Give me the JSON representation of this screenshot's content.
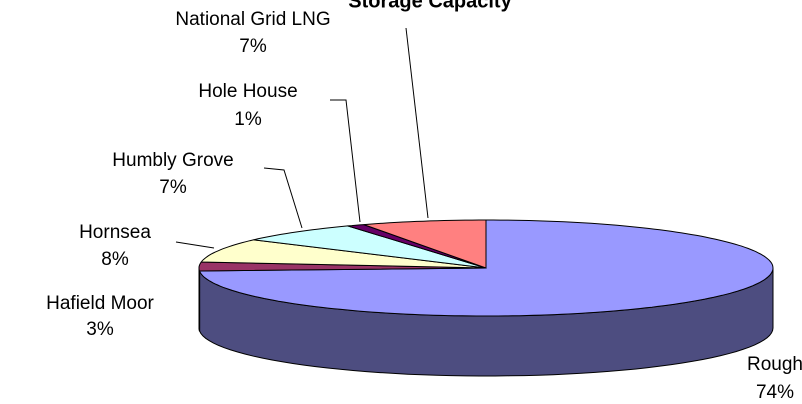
{
  "chart_data": {
    "type": "pie3d",
    "title": "Storage Capacity",
    "categories": [
      "Rough",
      "Hafield Moor",
      "Hornsea",
      "Humbly Grove",
      "Hole House",
      "National Grid LNG"
    ],
    "values": [
      74,
      3,
      8,
      7,
      1,
      7
    ],
    "value_labels": [
      "74%",
      "3%",
      "8%",
      "7%",
      "1%",
      "7%"
    ],
    "colors": [
      "#9999ff",
      "#993366",
      "#ffffcc",
      "#ccffff",
      "#660066",
      "#ff8080"
    ]
  }
}
